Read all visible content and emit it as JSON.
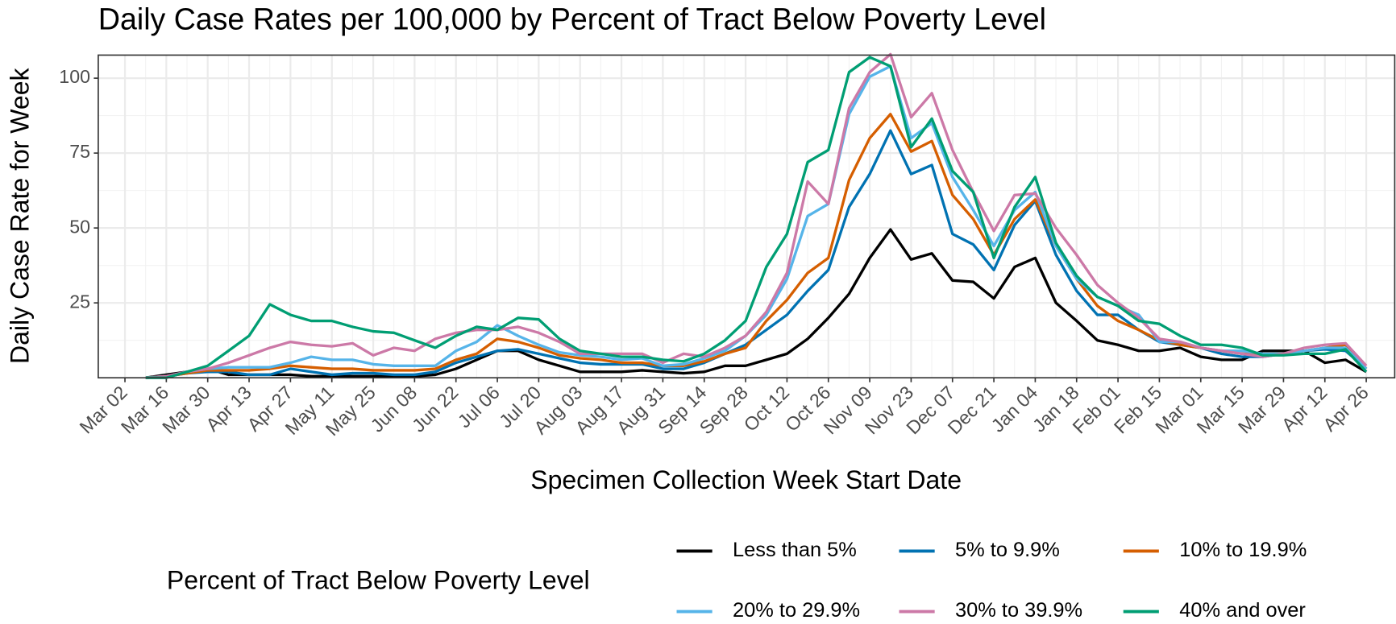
{
  "chart_data": {
    "type": "line",
    "title": "Daily Case Rates per 100,000 by Percent of Tract Below Poverty Level",
    "x_label": "Specimen Collection Week Start Date",
    "y_label": "Daily Case Rate for Week",
    "legend_title": "Percent of Tract Below Poverty Level",
    "legend_position": "bottom",
    "grid": true,
    "categories": [
      "Mar 02",
      null,
      "Mar 16",
      null,
      "Mar 30",
      null,
      "Apr 13",
      null,
      "Apr 27",
      null,
      "May 11",
      null,
      "May 25",
      null,
      "Jun 08",
      null,
      "Jun 22",
      null,
      "Jul 06",
      null,
      "Jul 20",
      null,
      "Aug 03",
      null,
      "Aug 17",
      null,
      "Aug 31",
      null,
      "Sep 14",
      null,
      "Sep 28",
      null,
      "Oct 12",
      null,
      "Oct 26",
      null,
      "Nov 09",
      null,
      "Nov 23",
      null,
      "Dec 07",
      null,
      "Dec 21",
      null,
      "Jan 04",
      null,
      "Jan 18",
      null,
      "Feb 01",
      null,
      "Feb 15",
      null,
      "Mar 01",
      null,
      "Mar 15",
      null,
      "Mar 29",
      null,
      "Apr 12",
      null,
      "Apr 26"
    ],
    "ylim": [
      0,
      107.7
    ],
    "yticks": [
      25,
      50,
      75,
      100
    ],
    "series": [
      {
        "name": "Less than 5%",
        "color": "#000000",
        "values": [
          null,
          0,
          1,
          2,
          3,
          1,
          1,
          1,
          1,
          0.5,
          0.5,
          0.5,
          0.5,
          0.5,
          0.5,
          1,
          3,
          6,
          9,
          9,
          6,
          4,
          2,
          2,
          2,
          2.5,
          2,
          1.5,
          2,
          4,
          4,
          6,
          8,
          13,
          20,
          28,
          40,
          49.5,
          39.5,
          41.5,
          32.5,
          32,
          26.5,
          37,
          40,
          25,
          19,
          12.5,
          11,
          9,
          9,
          10,
          7,
          6,
          6,
          9,
          9,
          9,
          5,
          6,
          2
        ]
      },
      {
        "name": "5% to 9.9%",
        "color": "#0072B2",
        "values": [
          null,
          0,
          0.5,
          1.5,
          2,
          2,
          1,
          1,
          3,
          2,
          1,
          1.5,
          1.5,
          1,
          1,
          2,
          5,
          7,
          9,
          9.5,
          8,
          6.5,
          5,
          4.5,
          4.5,
          4.5,
          3,
          3,
          5,
          8,
          11,
          16,
          21,
          29,
          36,
          57,
          68,
          82.5,
          68,
          71,
          48,
          44.5,
          36,
          51,
          59,
          41,
          29,
          21,
          21,
          16,
          12,
          11,
          10,
          8,
          7,
          7,
          8,
          9,
          9.5,
          9,
          3
        ]
      },
      {
        "name": "10% to 19.9%",
        "color": "#D55E00",
        "values": [
          null,
          0,
          0.5,
          1.5,
          2.5,
          2.5,
          2.5,
          3,
          4,
          3.5,
          3,
          3,
          2.5,
          2.5,
          2.5,
          3,
          6,
          8,
          13,
          12,
          10,
          7.5,
          6.5,
          6,
          5,
          5,
          4,
          4,
          5.5,
          8,
          10,
          19,
          26,
          35,
          40,
          66,
          80,
          88,
          75.5,
          79,
          61,
          53,
          41,
          53,
          59.5,
          44,
          33,
          24,
          19,
          16,
          12.5,
          11,
          10,
          9,
          8,
          8,
          8,
          9,
          10,
          11,
          3
        ]
      },
      {
        "name": "20% to 29.9%",
        "color": "#56B4E9",
        "values": [
          null,
          0,
          0.5,
          2,
          3,
          3.5,
          3.5,
          3.5,
          5,
          7,
          6,
          6,
          4.5,
          4,
          4,
          4,
          9,
          12,
          17.5,
          14,
          11,
          8.5,
          7.5,
          7,
          6,
          6.5,
          4,
          4.5,
          6.5,
          9,
          14,
          21,
          33,
          54,
          58,
          88,
          100.5,
          104,
          80,
          85,
          67,
          56,
          44,
          56,
          62,
          44,
          33,
          27,
          24,
          21,
          12,
          12,
          10,
          9,
          9,
          8,
          8,
          9,
          10,
          10,
          3
        ]
      },
      {
        "name": "30% to 39.9%",
        "color": "#CC79A7",
        "values": [
          null,
          0,
          0.5,
          2,
          3,
          5,
          7.5,
          10,
          12,
          11,
          10.5,
          11.5,
          7.5,
          10,
          9,
          13,
          15,
          16,
          16,
          17,
          15,
          12,
          8,
          8,
          8,
          8,
          5,
          8,
          7,
          10,
          14,
          22,
          35,
          65.5,
          58,
          90,
          102,
          108,
          87,
          95,
          76,
          62,
          49,
          61,
          61.5,
          50,
          41,
          31,
          25,
          20,
          13,
          12,
          10,
          9,
          8,
          7,
          8,
          10,
          11,
          11.5,
          4
        ]
      },
      {
        "name": "40% and over",
        "color": "#009E73",
        "values": [
          null,
          0,
          0,
          2,
          4,
          9,
          14,
          24.5,
          21,
          19,
          19,
          17,
          15.5,
          15,
          12.5,
          10,
          14,
          17,
          16,
          20,
          19.5,
          13,
          9,
          8,
          7,
          7,
          6,
          5.5,
          8,
          12.5,
          19,
          37,
          48,
          72,
          76,
          102,
          107,
          104,
          77,
          86.5,
          69,
          62,
          40,
          57,
          67,
          45,
          34,
          27,
          24,
          19,
          18,
          14,
          11,
          11,
          10,
          7.5,
          7.5,
          8,
          8,
          9.5,
          2
        ]
      }
    ]
  }
}
